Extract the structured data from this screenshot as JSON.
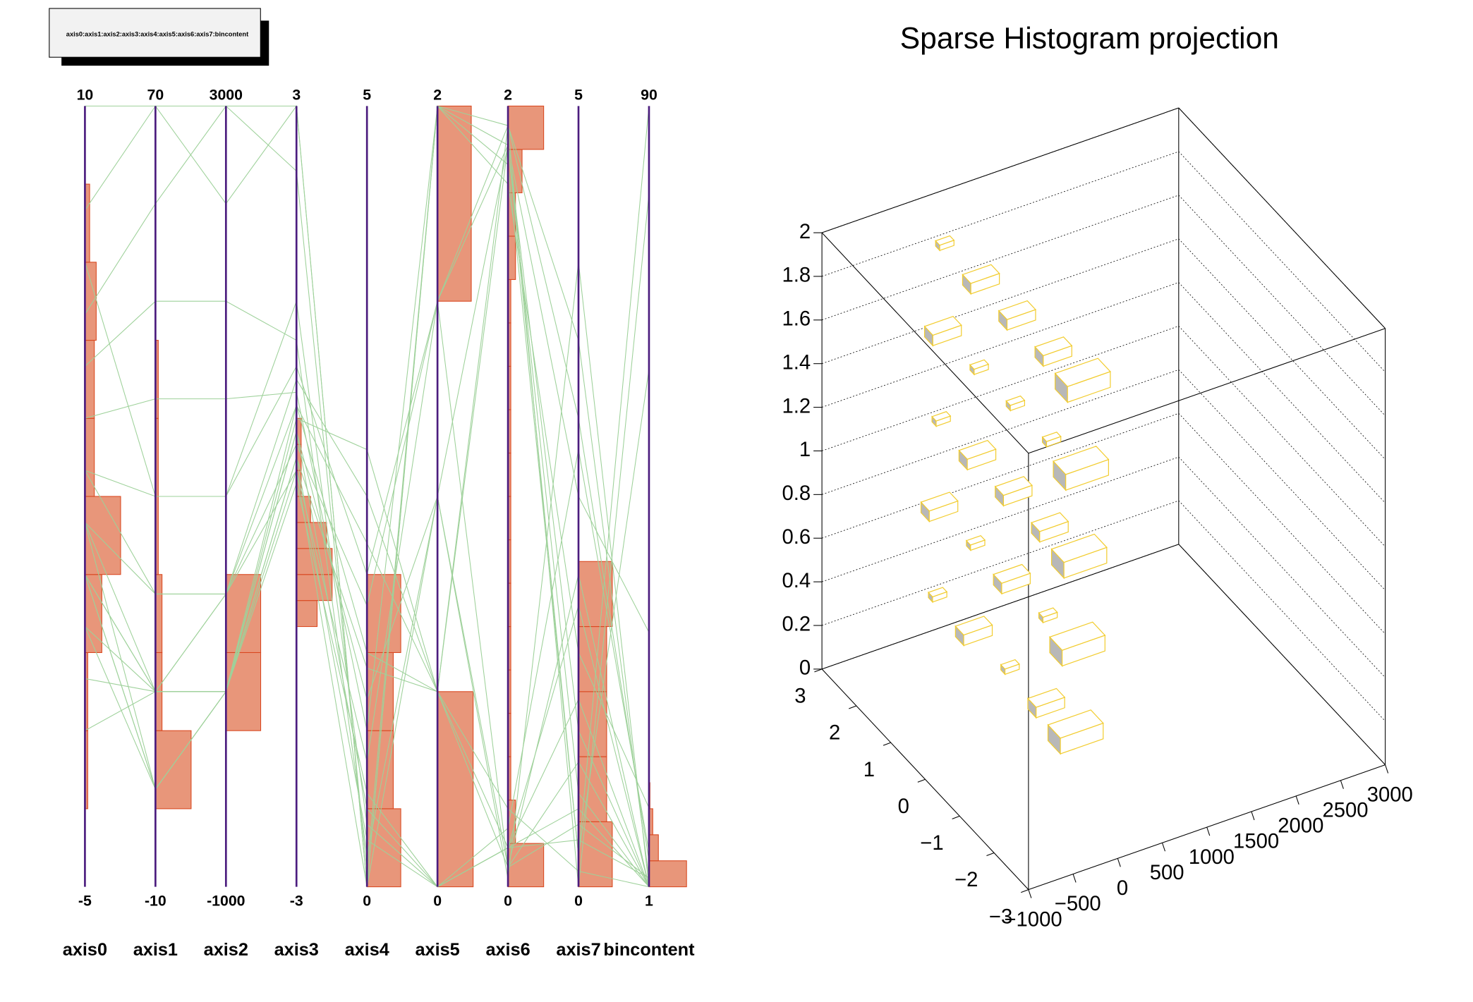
{
  "chart_data": [
    {
      "type": "parallel",
      "title": "axis0:axis1:axis2:axis3:axis4:axis5:axis6:axis7:bincontent",
      "axes": [
        {
          "name": "axis0",
          "min": -5,
          "max": 10,
          "counts": [
            0,
            3,
            3,
            18,
            38,
            10,
            10,
            12,
            5,
            0
          ]
        },
        {
          "name": "axis1",
          "min": -10,
          "max": 70,
          "counts": [
            0,
            38,
            7,
            7,
            3,
            3,
            3,
            0,
            0,
            0
          ]
        },
        {
          "name": "axis2",
          "min": -1000,
          "max": 3000,
          "counts": [
            0,
            0,
            37,
            37,
            0,
            0,
            0,
            0,
            0,
            0
          ]
        },
        {
          "name": "axis3",
          "min": -3,
          "max": 3,
          "counts": [
            0,
            0,
            0,
            0,
            0,
            0,
            0,
            0,
            0,
            0,
            22,
            38,
            38,
            32,
            15,
            5,
            5,
            5,
            0,
            0,
            0,
            0,
            0,
            0,
            0,
            0,
            0,
            0,
            0,
            0
          ]
        },
        {
          "name": "axis4",
          "min": 0,
          "max": 5,
          "counts": [
            36,
            28,
            28,
            36,
            0,
            0,
            0,
            0,
            0,
            0
          ]
        },
        {
          "name": "axis5",
          "min": 0,
          "max": 2,
          "counts": [
            38,
            0,
            0,
            36
          ]
        },
        {
          "name": "axis6",
          "min": 0,
          "max": 2,
          "counts": [
            38,
            8,
            3,
            3,
            3,
            3,
            3,
            3,
            3,
            3,
            3,
            3,
            3,
            3,
            8,
            8,
            15,
            38
          ]
        },
        {
          "name": "axis7",
          "min": 0,
          "max": 5,
          "counts": [
            36,
            30,
            30,
            30,
            36,
            0,
            0,
            0,
            0,
            0,
            0,
            0
          ]
        },
        {
          "name": "bincontent",
          "min": 1,
          "max": 90,
          "counts": [
            40,
            10,
            4,
            1,
            0,
            0,
            0,
            0,
            0,
            0,
            0,
            0,
            0,
            0,
            0,
            0,
            0,
            0,
            0,
            0,
            0,
            0,
            0,
            0,
            0,
            0,
            0,
            0,
            0,
            0
          ]
        }
      ],
      "entries": [
        [
          1,
          10,
          0,
          0.5,
          0.5,
          0,
          0.1,
          0.3,
          2
        ],
        [
          2,
          20,
          500,
          0.7,
          1.5,
          0.5,
          1.9,
          1,
          1
        ],
        [
          0,
          0,
          0,
          0.2,
          0,
          1,
          0.05,
          2,
          1
        ],
        [
          3,
          30,
          1000,
          1,
          2,
          1.5,
          1.95,
          3,
          4
        ],
        [
          -1,
          10,
          0,
          0.3,
          0.3,
          0,
          0.1,
          0.5,
          1
        ],
        [
          4,
          40,
          1500,
          0.8,
          1,
          2,
          1.8,
          1.5,
          10
        ],
        [
          2,
          0,
          0,
          0.6,
          2.8,
          0.5,
          0.2,
          0.1,
          1
        ],
        [
          5,
          50,
          2000,
          1.2,
          0.2,
          1,
          1.9,
          2.5,
          30
        ],
        [
          1,
          10,
          500,
          0.4,
          1.8,
          1.5,
          0.05,
          0.8,
          1
        ],
        [
          6,
          60,
          3000,
          2.5,
          0.1,
          2,
          1.85,
          0.2,
          90
        ],
        [
          0,
          10,
          0,
          0.1,
          0.6,
          0,
          0.1,
          1.2,
          1
        ],
        [
          3,
          20,
          500,
          0.9,
          2.5,
          0.5,
          1.95,
          3.5,
          2
        ],
        [
          1,
          0,
          0,
          0.5,
          1.2,
          1,
          0.02,
          4,
          1
        ],
        [
          8,
          70,
          2500,
          3,
          0,
          2,
          1.9,
          0.2,
          60
        ],
        [
          -2,
          10,
          0,
          0.7,
          2.2,
          0.5,
          0.1,
          1.8,
          1
        ],
        [
          2,
          10,
          500,
          0.2,
          0.8,
          1.5,
          1.9,
          0.6,
          1
        ],
        [
          7,
          30,
          1000,
          1.5,
          0.4,
          0,
          0.15,
          2.8,
          5
        ],
        [
          1,
          0,
          0,
          0.3,
          1.4,
          0.5,
          0.05,
          0.4,
          2
        ],
        [
          10,
          70,
          3000,
          3,
          0,
          2,
          1.95,
          0,
          80
        ]
      ],
      "line_color": "#9ed19a",
      "bar_color": "#e8967a",
      "bar_edge": "#d9471f",
      "axis_color": "#4b1c7e"
    },
    {
      "type": "lego3d",
      "title": "Sparse Histogram projection",
      "xlim": [
        -1000,
        3000
      ],
      "ylim": [
        -3,
        3
      ],
      "zlim": [
        0,
        2
      ],
      "xticks": [
        {
          "value": -1000,
          "label": "−1000"
        },
        {
          "value": -500,
          "label": "−500"
        },
        0,
        500,
        1000,
        1500,
        2000,
        2500,
        3000
      ],
      "yticks": [
        {
          "value": -3,
          "label": "−3"
        },
        {
          "value": -2,
          "label": "−2"
        },
        {
          "value": -1,
          "label": "−1"
        },
        0,
        1,
        2,
        3
      ],
      "zticks": [
        0,
        0.2,
        0.4,
        0.6,
        0.8,
        1,
        1.2,
        1.4,
        1.6,
        1.8,
        2
      ],
      "x": [
        220,
        240,
        260,
        280,
        300,
        240,
        260,
        280,
        300,
        320,
        260,
        280,
        300,
        320,
        340,
        280,
        300,
        320,
        340,
        360,
        300,
        320,
        340,
        360,
        380
      ],
      "y": [
        2.8,
        2.8,
        2.8,
        2.8,
        2.8,
        1.8,
        1.8,
        1.8,
        1.8,
        1.8,
        0.8,
        0.8,
        0.8,
        0.8,
        0.8,
        -0.2,
        -0.2,
        -0.2,
        -0.2,
        -0.2,
        -1,
        -1,
        -1,
        -1,
        -1
      ],
      "z": [
        0.2,
        0.6,
        1,
        1.4,
        1.8,
        0.2,
        0.6,
        1,
        1.4,
        1.8,
        0.2,
        0.6,
        1,
        1.4,
        1.8,
        0.2,
        0.6,
        1,
        1.4,
        1.8,
        0.2,
        0.6,
        1,
        1.4,
        1.8
      ],
      "values": [
        1,
        2,
        1,
        2,
        1,
        2,
        1,
        2,
        1,
        2,
        1,
        2,
        2,
        1,
        2,
        2,
        1,
        2,
        1,
        2,
        3,
        3,
        3,
        3,
        3
      ],
      "grid": true,
      "color": "#f2cc2e",
      "side_color": "#b8b8b8"
    }
  ]
}
